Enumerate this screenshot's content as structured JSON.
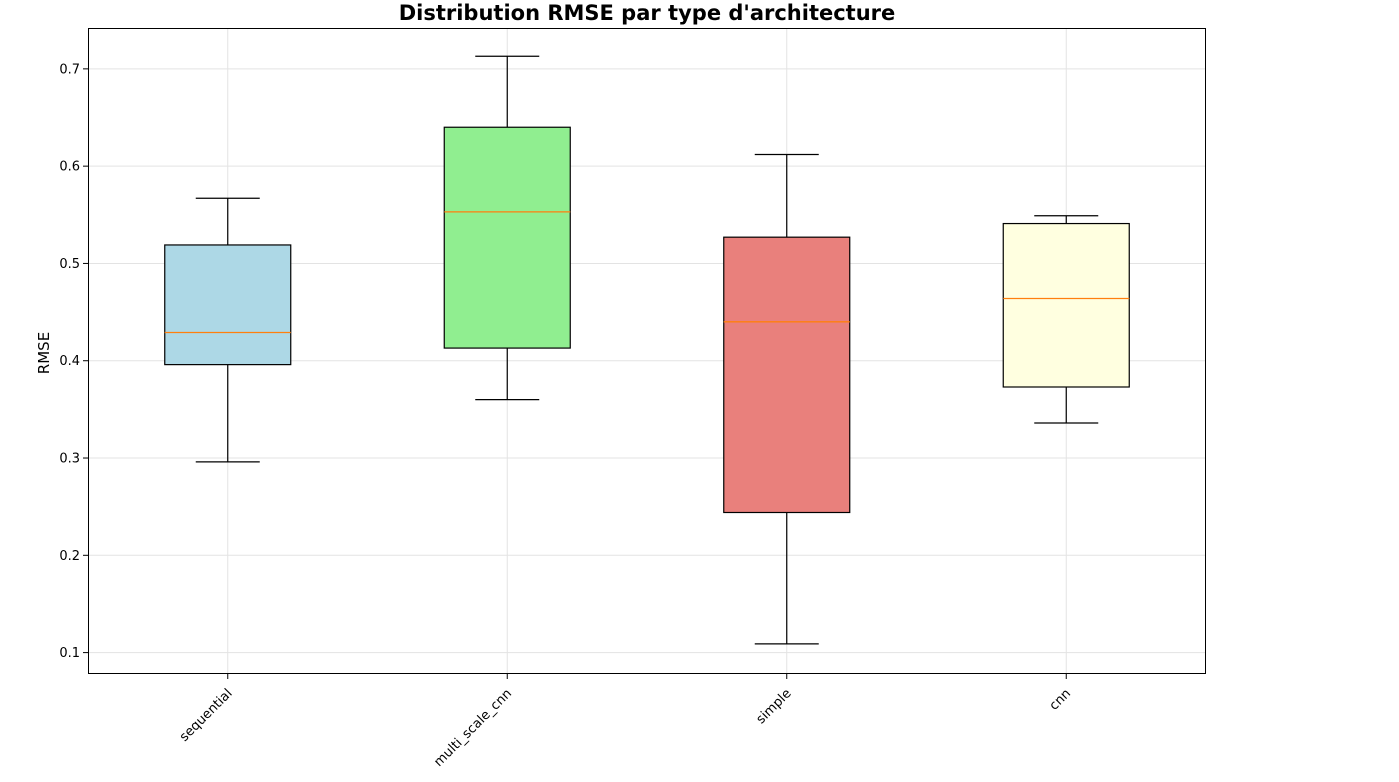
{
  "chart_data": {
    "type": "boxplot",
    "title": "Distribution RMSE par type d'architecture",
    "xlabel": "",
    "ylabel": "RMSE",
    "ylim": [
      0.078,
      0.742
    ],
    "yticks": [
      "0.1",
      "0.2",
      "0.3",
      "0.4",
      "0.5",
      "0.6",
      "0.7"
    ],
    "grid": true,
    "categories": [
      "sequential",
      "multi_scale_cnn",
      "simple",
      "cnn"
    ],
    "boxes": [
      {
        "category": "sequential",
        "whisker_low": 0.296,
        "q1": 0.396,
        "median": 0.429,
        "q3": 0.519,
        "whisker_high": 0.567,
        "color": "#add8e6"
      },
      {
        "category": "multi_scale_cnn",
        "whisker_low": 0.36,
        "q1": 0.413,
        "median": 0.553,
        "q3": 0.64,
        "whisker_high": 0.713,
        "color": "#90ee90"
      },
      {
        "category": "simple",
        "whisker_low": 0.109,
        "q1": 0.244,
        "median": 0.44,
        "q3": 0.527,
        "whisker_high": 0.612,
        "color": "#e9807c"
      },
      {
        "category": "cnn",
        "whisker_low": 0.336,
        "q1": 0.373,
        "median": 0.464,
        "q3": 0.541,
        "whisker_high": 0.549,
        "color": "#ffffe0"
      }
    ]
  }
}
